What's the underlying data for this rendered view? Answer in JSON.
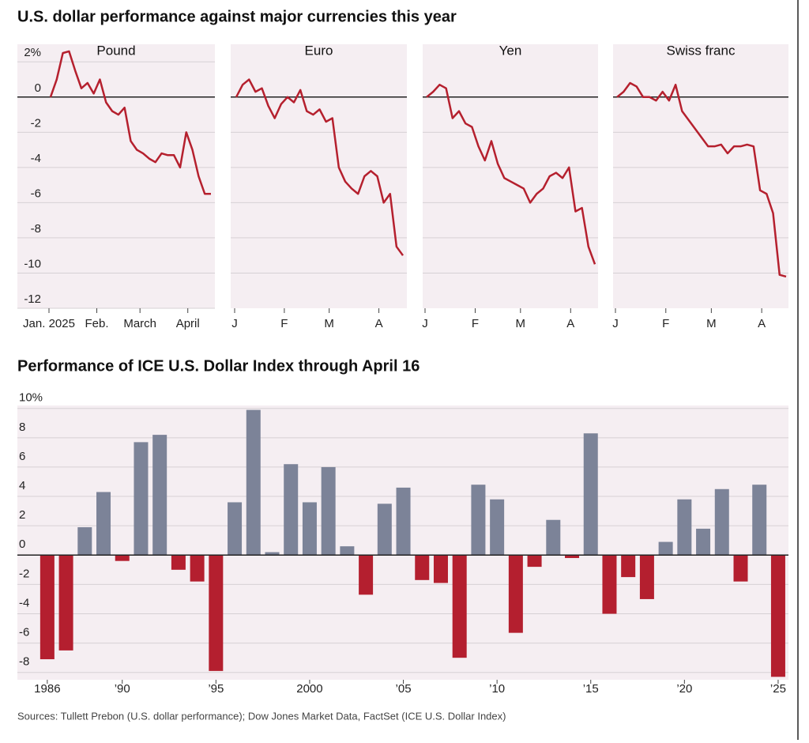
{
  "title": "U.S. dollar performance against major currencies this year",
  "source": "Sources: Tullett Prebon (U.S. dollar performance); Dow Jones Market Data, FactSet (ICE U.S. Dollar Index)",
  "chart_data": [
    {
      "type": "line",
      "title": "Pound",
      "color": "#b5202e",
      "show_ytick_labels": true,
      "x": [
        2,
        6,
        10,
        14,
        18,
        22,
        26,
        30,
        34,
        38,
        42,
        46,
        50,
        54,
        58,
        62,
        66,
        70,
        74,
        78,
        82,
        86,
        90,
        94,
        98,
        102,
        106
      ],
      "values": [
        0,
        1,
        2.5,
        2.6,
        1.5,
        0.5,
        0.8,
        0.2,
        1,
        -0.3,
        -0.8,
        -1,
        -0.6,
        -2.5,
        -3,
        -3.2,
        -3.5,
        -3.7,
        -3.2,
        -3.3,
        -3.3,
        -4,
        -2,
        -3,
        -4.5,
        -5.5,
        -5.5
      ],
      "xlim": [
        1,
        106
      ],
      "xticks": [
        {
          "value": 1,
          "label": "Jan. 2025"
        },
        {
          "value": 32,
          "label": "Feb."
        },
        {
          "value": 60,
          "label": "March"
        },
        {
          "value": 91,
          "label": "April"
        }
      ],
      "ylim": [
        -12,
        3
      ],
      "yticks": [
        -12,
        -10,
        -8,
        -6,
        -4,
        -2,
        0,
        {
          "value": 2,
          "label": "2%"
        }
      ]
    },
    {
      "type": "line",
      "title": "Euro",
      "color": "#b5202e",
      "show_ytick_labels": false,
      "x": [
        2,
        6,
        10,
        14,
        18,
        22,
        26,
        30,
        34,
        38,
        42,
        46,
        50,
        54,
        58,
        62,
        66,
        70,
        74,
        78,
        82,
        86,
        90,
        94,
        98,
        102,
        106
      ],
      "values": [
        0,
        0.7,
        1,
        0.3,
        0.5,
        -0.5,
        -1.2,
        -0.4,
        0,
        -0.3,
        0.4,
        -0.8,
        -1,
        -0.7,
        -1.4,
        -1.2,
        -4,
        -4.8,
        -5.2,
        -5.5,
        -4.5,
        -4.2,
        -4.5,
        -6,
        -5.5,
        -8.5,
        -9
      ],
      "xlim": [
        1,
        106
      ],
      "xticks": [
        {
          "value": 1,
          "label": "J"
        },
        {
          "value": 32,
          "label": "F"
        },
        {
          "value": 60,
          "label": "M"
        },
        {
          "value": 91,
          "label": "A"
        }
      ],
      "ylim": [
        -12,
        3
      ],
      "yticks": [
        -10,
        -8,
        -6,
        -4,
        -2,
        0
      ]
    },
    {
      "type": "line",
      "title": "Yen",
      "color": "#b5202e",
      "show_ytick_labels": false,
      "x": [
        2,
        6,
        10,
        14,
        18,
        22,
        26,
        30,
        34,
        38,
        42,
        46,
        50,
        54,
        58,
        62,
        66,
        70,
        74,
        78,
        82,
        86,
        90,
        94,
        98,
        102,
        106
      ],
      "values": [
        0,
        0.3,
        0.7,
        0.5,
        -1.2,
        -0.8,
        -1.5,
        -1.7,
        -2.8,
        -3.6,
        -2.5,
        -3.8,
        -4.6,
        -4.8,
        -5,
        -5.2,
        -6,
        -5.5,
        -5.2,
        -4.5,
        -4.3,
        -4.6,
        -4,
        -6.5,
        -6.3,
        -8.5,
        -9.5
      ],
      "xlim": [
        1,
        106
      ],
      "xticks": [
        {
          "value": 1,
          "label": "J"
        },
        {
          "value": 32,
          "label": "F"
        },
        {
          "value": 60,
          "label": "M"
        },
        {
          "value": 91,
          "label": "A"
        }
      ],
      "ylim": [
        -12,
        3
      ],
      "yticks": [
        -10,
        -8,
        -6,
        -4,
        -2,
        0
      ]
    },
    {
      "type": "line",
      "title": "Swiss franc",
      "color": "#b5202e",
      "show_ytick_labels": false,
      "x": [
        2,
        6,
        10,
        14,
        18,
        22,
        26,
        30,
        34,
        38,
        42,
        46,
        50,
        54,
        58,
        62,
        66,
        70,
        74,
        78,
        82,
        86,
        90,
        94,
        98,
        102,
        106
      ],
      "values": [
        0,
        0.3,
        0.8,
        0.6,
        0,
        0,
        -0.2,
        0.3,
        -0.2,
        0.7,
        -0.8,
        -1.3,
        -1.8,
        -2.3,
        -2.8,
        -2.8,
        -2.7,
        -3.2,
        -2.8,
        -2.8,
        -2.7,
        -2.8,
        -5.3,
        -5.5,
        -6.6,
        -10.1,
        -10.2
      ],
      "xlim": [
        1,
        106
      ],
      "xticks": [
        {
          "value": 1,
          "label": "J"
        },
        {
          "value": 32,
          "label": "F"
        },
        {
          "value": 60,
          "label": "M"
        },
        {
          "value": 91,
          "label": "A"
        }
      ],
      "ylim": [
        -12,
        3
      ],
      "yticks": [
        -10,
        -8,
        -6,
        -4,
        -2,
        0
      ]
    },
    {
      "type": "bar",
      "title": "Performance of ICE U.S. Dollar Index through April 16",
      "color": "#7c8398",
      "negative_color": "#b41f2f",
      "categories": [
        "1986",
        null,
        null,
        null,
        "’90",
        null,
        null,
        null,
        null,
        "’95",
        null,
        null,
        null,
        null,
        "2000",
        null,
        null,
        null,
        null,
        "’05",
        null,
        null,
        null,
        null,
        "’10",
        null,
        null,
        null,
        null,
        "’15",
        null,
        null,
        null,
        null,
        "’20",
        null,
        null,
        null,
        null,
        "’25"
      ],
      "values": [
        -7.1,
        -6.5,
        1.9,
        4.3,
        -0.4,
        7.7,
        8.2,
        -1.0,
        -1.8,
        -7.9,
        3.6,
        9.9,
        0.2,
        6.2,
        3.6,
        6.0,
        0.6,
        -2.7,
        3.5,
        4.6,
        -1.7,
        -1.9,
        -7.0,
        4.8,
        3.8,
        -5.3,
        -0.8,
        2.4,
        -0.2,
        8.3,
        -4.0,
        -1.5,
        -3.0,
        0.9,
        3.8,
        1.8,
        4.5,
        -1.8,
        4.8,
        -8.3
      ],
      "ylim": [
        -8.5,
        10.2
      ],
      "yticks": [
        -8,
        -6,
        -4,
        -2,
        0,
        2,
        4,
        6,
        8,
        {
          "value": 10,
          "label": "10%"
        }
      ]
    }
  ]
}
